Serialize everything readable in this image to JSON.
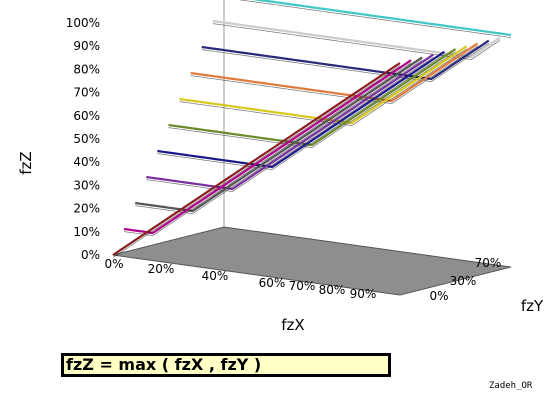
{
  "chart_data": {
    "type": "line",
    "title": "",
    "xlabel": "fzX",
    "ylabel": "fzY",
    "zlabel": "fzZ",
    "z_ticks": [
      "0%",
      "10%",
      "20%",
      "30%",
      "40%",
      "50%",
      "60%",
      "70%",
      "80%",
      "90%",
      "100%"
    ],
    "x_ticks": [
      "0%",
      "20%",
      "40%",
      "60%",
      "70%",
      "80%",
      "90%"
    ],
    "y_ticks": [
      "0%",
      "30%",
      "70%"
    ],
    "zlim": [
      0,
      100
    ],
    "function": "max(fzX, fzY)",
    "series": [
      {
        "fzY": 0,
        "color": "#8a1f1f"
      },
      {
        "fzY": 10,
        "color": "#b0008a"
      },
      {
        "fzY": 20,
        "color": "#555555"
      },
      {
        "fzY": 30,
        "color": "#7a2fa0"
      },
      {
        "fzY": 40,
        "color": "#1a1a8a"
      },
      {
        "fzY": 50,
        "color": "#6a8a2a"
      },
      {
        "fzY": 60,
        "color": "#d8c81a"
      },
      {
        "fzY": 70,
        "color": "#e07a3a"
      },
      {
        "fzY": 80,
        "color": "#2a2a7a"
      },
      {
        "fzY": 90,
        "color": "#cccccc"
      },
      {
        "fzY": 100,
        "color": "#40c8c8"
      }
    ],
    "floor_color": "#8e8e8e",
    "grid": false
  },
  "formula": "fzZ = max ( fzX , fzY )",
  "credit": "Zadeh_OR"
}
